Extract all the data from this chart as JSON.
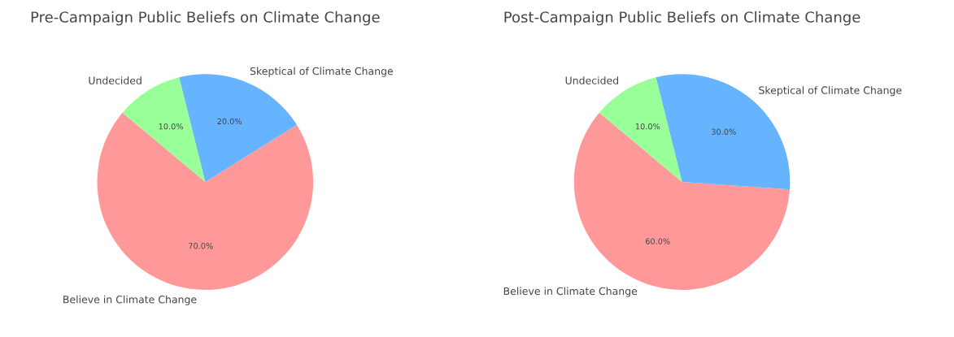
{
  "chart_data": [
    {
      "type": "pie",
      "title": "Pre-Campaign Public Beliefs on Climate Change",
      "categories": [
        "Believe in Climate Change",
        "Skeptical of Climate Change",
        "Undecided"
      ],
      "values": [
        70,
        20,
        10
      ],
      "colors": [
        "#ff9999",
        "#66b3ff",
        "#99ff99"
      ],
      "value_labels": [
        "70.0%",
        "20.0%",
        "10.0%"
      ]
    },
    {
      "type": "pie",
      "title": "Post-Campaign Public Beliefs on Climate Change",
      "categories": [
        "Believe in Climate Change",
        "Skeptical of Climate Change",
        "Undecided"
      ],
      "values": [
        60,
        30,
        10
      ],
      "colors": [
        "#ff9999",
        "#66b3ff",
        "#99ff99"
      ],
      "value_labels": [
        "60.0%",
        "30.0%",
        "10.0%"
      ]
    }
  ]
}
